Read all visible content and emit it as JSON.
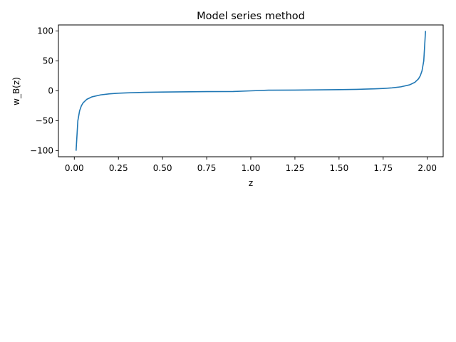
{
  "chart_data": {
    "type": "line",
    "title": "Model series method",
    "xlabel": "z",
    "ylabel": "w_B(z)",
    "xlim": [
      -0.09,
      2.09
    ],
    "ylim": [
      -110,
      110
    ],
    "grid": false,
    "xticks": [
      0.0,
      0.25,
      0.5,
      0.75,
      1.0,
      1.25,
      1.5,
      1.75,
      2.0
    ],
    "xtick_labels": [
      "0.00",
      "0.25",
      "0.50",
      "0.75",
      "1.00",
      "1.25",
      "1.50",
      "1.75",
      "2.00"
    ],
    "yticks": [
      -100,
      -50,
      0,
      50,
      100
    ],
    "ytick_labels": [
      "−100",
      "−50",
      "0",
      "50",
      "100"
    ],
    "series": [
      {
        "color": "#1f77b4",
        "x": [
          0.01,
          0.02,
          0.03,
          0.04,
          0.05,
          0.07,
          0.1,
          0.15,
          0.2,
          0.25,
          0.3,
          0.4,
          0.5,
          0.6,
          0.75,
          0.9,
          1.0,
          1.1,
          1.25,
          1.4,
          1.5,
          1.6,
          1.7,
          1.75,
          1.8,
          1.85,
          1.9,
          1.93,
          1.95,
          1.96,
          1.97,
          1.98,
          1.99
        ],
        "y": [
          -100,
          -50,
          -33.3,
          -25,
          -20,
          -14.3,
          -10,
          -6.7,
          -5,
          -4,
          -3.3,
          -2.5,
          -2,
          -1.7,
          -1.3,
          -1.1,
          0,
          1.1,
          1.3,
          1.7,
          2,
          2.5,
          3.3,
          4,
          5,
          6.7,
          10,
          14.3,
          20,
          25,
          33.3,
          50,
          100
        ]
      }
    ]
  }
}
